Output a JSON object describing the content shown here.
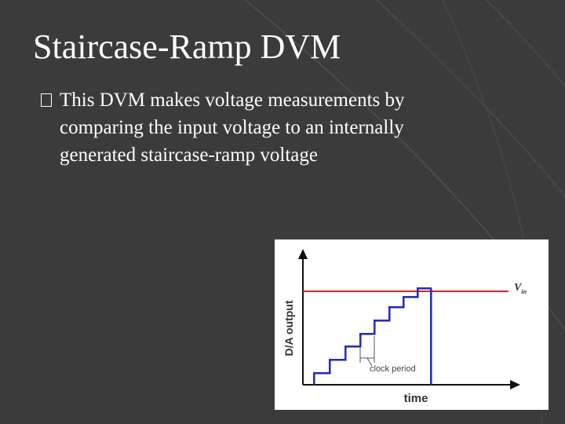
{
  "slide": {
    "title": "Staircase-Ramp DVM",
    "bullet": {
      "lines": [
        "This DVM makes voltage measurements by",
        "comparing the input voltage to an internally",
        "generated staircase-ramp voltage"
      ]
    },
    "figure": {
      "y_axis_label": "D/A output",
      "x_axis_label": "time",
      "annotation": "clock period",
      "reference_label": {
        "main": "V",
        "subscript": "in"
      }
    }
  }
}
